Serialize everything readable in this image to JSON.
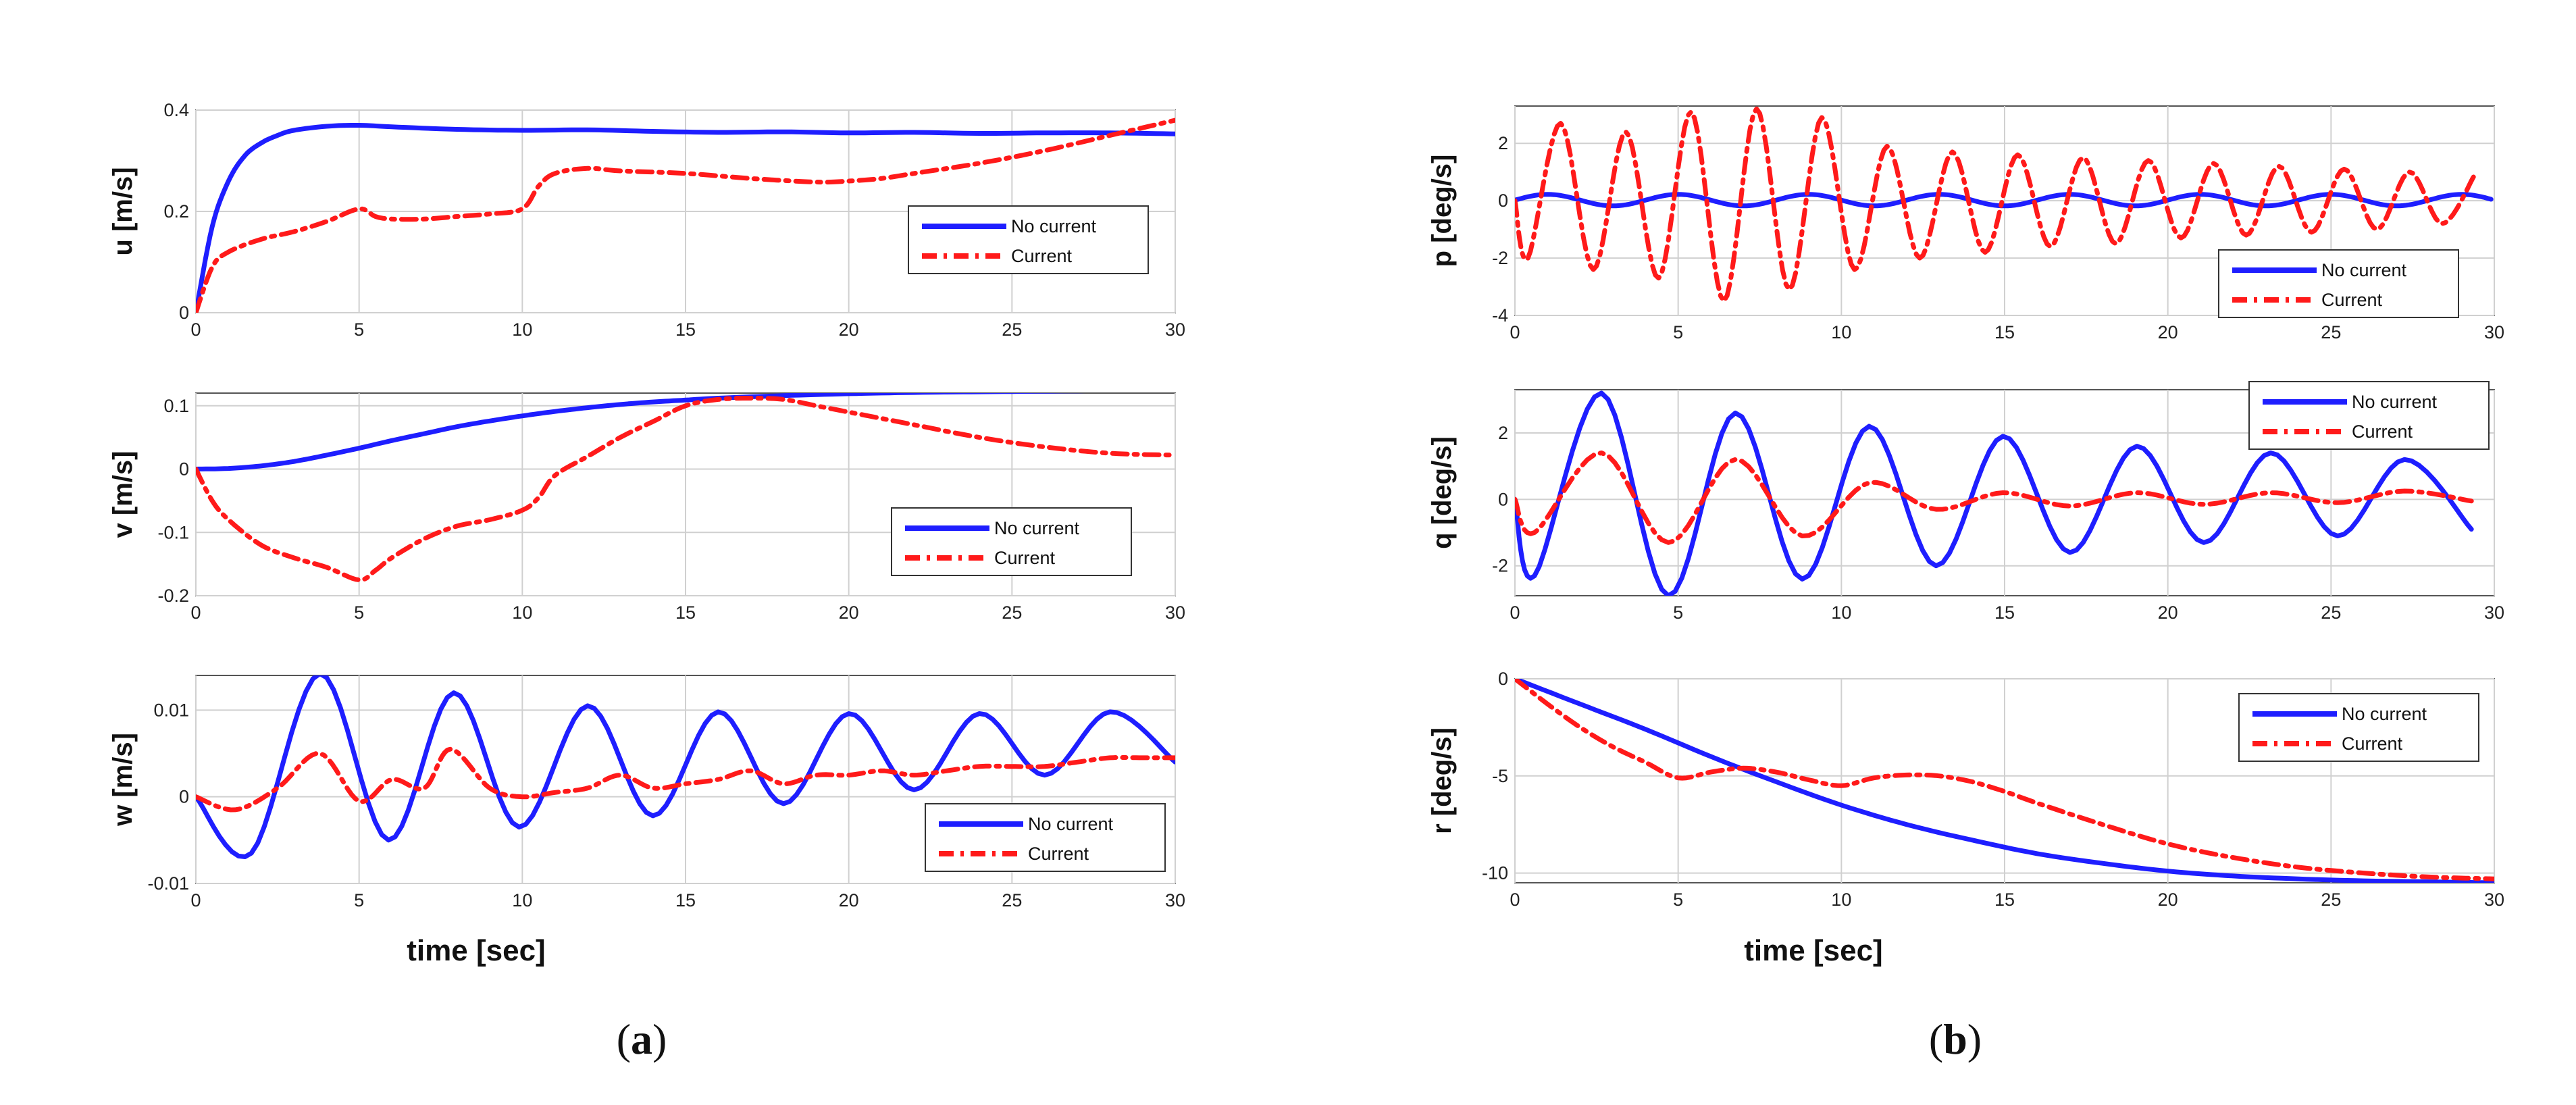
{
  "figure": {
    "xlabel": "time [sec]",
    "captions": {
      "a": {
        "open": "(",
        "letter": "a",
        "close": ")"
      },
      "b": {
        "open": "(",
        "letter": "b",
        "close": ")"
      }
    }
  },
  "colors": {
    "no_current": "#1e1eff",
    "current": "#ff1a1a",
    "grid": "#d0d0d0"
  },
  "chart_data": [
    {
      "id": "u",
      "type": "line",
      "title": "",
      "ylabel": "u [m/s]",
      "xlim": [
        0,
        30
      ],
      "ylim": [
        0,
        0.4
      ],
      "yticks": [
        0,
        0.2,
        0.4
      ],
      "ytick_labels": [
        "0",
        "0.2",
        "0.4"
      ],
      "xticks": [
        0,
        5,
        10,
        15,
        20,
        25,
        30
      ],
      "xtick_labels": [
        "0",
        "5",
        "10",
        "15",
        "20",
        "25",
        "30"
      ],
      "legend": {
        "position": "right-middle",
        "entries": [
          "No current",
          "Current"
        ]
      },
      "series": [
        {
          "name": "No current",
          "style": "solid",
          "x": [
            0,
            0.5,
            1,
            1.5,
            2,
            2.5,
            3,
            4,
            5,
            6,
            8,
            10,
            12,
            14,
            16,
            18,
            20,
            22,
            24,
            26,
            28,
            30
          ],
          "y": [
            0,
            0.17,
            0.26,
            0.31,
            0.335,
            0.35,
            0.36,
            0.368,
            0.37,
            0.367,
            0.362,
            0.36,
            0.361,
            0.358,
            0.356,
            0.357,
            0.355,
            0.356,
            0.354,
            0.355,
            0.355,
            0.353
          ]
        },
        {
          "name": "Current",
          "style": "dashdot",
          "x": [
            0,
            0.5,
            1,
            2,
            3,
            4,
            5,
            5.5,
            6,
            7,
            8,
            9,
            10,
            10.5,
            11,
            12,
            13,
            15,
            17,
            19,
            20,
            21,
            22,
            24,
            26,
            28,
            30
          ],
          "y": [
            0,
            0.09,
            0.12,
            0.145,
            0.16,
            0.18,
            0.205,
            0.19,
            0.185,
            0.185,
            0.19,
            0.195,
            0.205,
            0.25,
            0.275,
            0.285,
            0.28,
            0.275,
            0.265,
            0.258,
            0.26,
            0.265,
            0.275,
            0.295,
            0.32,
            0.35,
            0.38
          ]
        }
      ]
    },
    {
      "id": "v",
      "type": "line",
      "title": "",
      "ylabel": "v [m/s]",
      "xlim": [
        0,
        30
      ],
      "ylim": [
        -0.2,
        0.12
      ],
      "yticks": [
        -0.2,
        -0.1,
        0,
        0.1
      ],
      "ytick_labels": [
        "-0.2",
        "-0.1",
        "0",
        "0.1"
      ],
      "xticks": [
        0,
        5,
        10,
        15,
        20,
        25,
        30
      ],
      "xtick_labels": [
        "0",
        "5",
        "10",
        "15",
        "20",
        "25",
        "30"
      ],
      "legend": {
        "position": "lower-right",
        "entries": [
          "No current",
          "Current"
        ]
      },
      "series": [
        {
          "name": "No current",
          "style": "solid",
          "x": [
            0,
            1,
            2,
            3,
            4,
            5,
            6,
            7,
            8,
            9,
            10,
            11,
            12,
            13,
            14,
            15,
            16,
            18,
            20,
            22,
            24,
            26,
            28,
            30
          ],
          "y": [
            0,
            0.001,
            0.005,
            0.012,
            0.022,
            0.033,
            0.045,
            0.056,
            0.067,
            0.076,
            0.084,
            0.091,
            0.097,
            0.102,
            0.106,
            0.109,
            0.112,
            0.116,
            0.119,
            0.121,
            0.122,
            0.123,
            0.124,
            0.124
          ]
        },
        {
          "name": "Current",
          "style": "dashdot",
          "x": [
            0,
            0.5,
            1,
            2,
            3,
            4,
            5,
            5.5,
            6,
            7,
            8,
            9,
            10,
            10.5,
            11,
            12,
            13,
            14,
            15,
            16,
            17,
            18,
            19,
            20,
            21,
            22,
            24,
            26,
            28,
            30
          ],
          "y": [
            0,
            -0.05,
            -0.08,
            -0.12,
            -0.14,
            -0.155,
            -0.175,
            -0.16,
            -0.14,
            -0.11,
            -0.09,
            -0.08,
            -0.065,
            -0.045,
            -0.01,
            0.02,
            0.05,
            0.075,
            0.1,
            0.11,
            0.112,
            0.11,
            0.1,
            0.09,
            0.08,
            0.07,
            0.05,
            0.035,
            0.025,
            0.022
          ]
        }
      ]
    },
    {
      "id": "w",
      "type": "line",
      "title": "",
      "ylabel": "w [m/s]",
      "xlim": [
        0,
        30
      ],
      "ylim": [
        -0.01,
        0.014
      ],
      "yticks": [
        -0.01,
        0,
        0.01
      ],
      "ytick_labels": [
        "-0.01",
        "0",
        "0.01"
      ],
      "xticks": [
        0,
        5,
        10,
        15,
        20,
        25,
        30
      ],
      "xtick_labels": [
        "0",
        "5",
        "10",
        "15",
        "20",
        "25",
        "30"
      ],
      "legend": {
        "position": "lower-right",
        "entries": [
          "No current",
          "Current"
        ]
      },
      "series": [
        {
          "name": "No current",
          "style": "solid",
          "model": "damped_sine",
          "params": {
            "amp": 0.01,
            "period": 4.1,
            "offset": 0.0045
          },
          "points_x": [
            0,
            1.7,
            3.8,
            5.9,
            7.9,
            9.9,
            12,
            14,
            16,
            18,
            20,
            22,
            24,
            26,
            28,
            30
          ],
          "points_y": [
            0,
            -0.0065,
            0.0142,
            -0.005,
            0.012,
            -0.0035,
            0.0105,
            -0.0022,
            0.0098,
            -0.0008,
            0.0096,
            0.0008,
            0.0096,
            0.0025,
            0.0098,
            0.004
          ]
        },
        {
          "name": "Current",
          "style": "dashdot",
          "points_x": [
            0,
            1.2,
            2.5,
            3.8,
            5.0,
            6.0,
            7.0,
            7.8,
            9.0,
            10,
            11,
            12,
            13,
            14,
            15,
            16,
            17,
            18,
            19,
            20,
            21,
            22,
            23,
            24,
            25,
            26,
            27,
            28,
            29,
            30
          ],
          "points_y": [
            0,
            -0.0015,
            0.001,
            0.005,
            -0.0005,
            0.002,
            0.001,
            0.0055,
            0.001,
            0.0,
            0.0005,
            0.001,
            0.0025,
            0.001,
            0.0015,
            0.002,
            0.003,
            0.0015,
            0.0025,
            0.0025,
            0.003,
            0.0025,
            0.003,
            0.0035,
            0.0035,
            0.0035,
            0.004,
            0.0045,
            0.0045,
            0.0045
          ]
        }
      ]
    },
    {
      "id": "p",
      "type": "line",
      "title": "",
      "ylabel": "p [deg/s]",
      "xlim": [
        0,
        30
      ],
      "ylim": [
        -4,
        3.3
      ],
      "yticks": [
        -4,
        -2,
        0,
        2
      ],
      "ytick_labels": [
        "-4",
        "-2",
        "0",
        "2"
      ],
      "xticks": [
        0,
        5,
        10,
        15,
        20,
        25,
        30
      ],
      "xtick_labels": [
        "0",
        "5",
        "10",
        "15",
        "20",
        "25",
        "30"
      ],
      "legend": {
        "position": "lower-right",
        "entries": [
          "No current",
          "Current"
        ]
      },
      "series": [
        {
          "name": "No current",
          "style": "solid",
          "amplitude": 0.2,
          "period": 4.0
        },
        {
          "name": "Current",
          "style": "dashdot",
          "period": 2.0,
          "peaks": [
            2.7,
            2.4,
            3.1,
            3.2,
            2.9,
            1.9,
            1.7,
            1.6,
            1.5,
            1.4,
            1.3,
            1.2,
            1.1,
            1.0,
            0.9
          ],
          "troughs": [
            -2.0,
            -2.4,
            -2.7,
            -3.5,
            -3.1,
            -2.4,
            -2.0,
            -1.8,
            -1.6,
            -1.5,
            -1.3,
            -1.2,
            -1.1,
            -1.0,
            -0.8
          ]
        }
      ]
    },
    {
      "id": "q",
      "type": "line",
      "title": "",
      "ylabel": "q [deg/s]",
      "xlim": [
        0,
        30
      ],
      "ylim": [
        -2.9,
        3.3
      ],
      "yticks": [
        -2,
        0,
        2
      ],
      "ytick_labels": [
        "-2",
        "0",
        "2"
      ],
      "xticks": [
        0,
        5,
        10,
        15,
        20,
        25,
        30
      ],
      "xtick_labels": [
        "0",
        "5",
        "10",
        "15",
        "20",
        "25",
        "30"
      ],
      "legend": {
        "position": "top-right",
        "entries": [
          "No current",
          "Current"
        ]
      },
      "series": [
        {
          "name": "No current",
          "style": "solid",
          "period": 4.1,
          "peaks": [
            3.2,
            2.6,
            2.2,
            1.9,
            1.6,
            1.4,
            1.2
          ],
          "troughs": [
            -2.3,
            -2.9,
            -2.4,
            -2.0,
            -1.6,
            -1.3,
            -1.1,
            -0.9
          ]
        },
        {
          "name": "Current",
          "style": "dashdot",
          "period": 4.1,
          "peaks": [
            1.4,
            1.2,
            0.5,
            0.2,
            0.2,
            0.2,
            0.25
          ],
          "troughs": [
            -1.0,
            -1.3,
            -1.1,
            -0.3,
            -0.2,
            -0.15,
            -0.1,
            -0.05
          ]
        }
      ]
    },
    {
      "id": "r",
      "type": "line",
      "title": "",
      "ylabel": "r [deg/s]",
      "xlim": [
        0,
        30
      ],
      "ylim": [
        -10.5,
        0
      ],
      "yticks": [
        -10,
        -5,
        0
      ],
      "ytick_labels": [
        "-10",
        "-5",
        "0"
      ],
      "xticks": [
        0,
        5,
        10,
        15,
        20,
        25,
        30
      ],
      "xtick_labels": [
        "0",
        "5",
        "10",
        "15",
        "20",
        "25",
        "30"
      ],
      "legend": {
        "position": "top-right",
        "entries": [
          "No current",
          "Current"
        ]
      },
      "series": [
        {
          "name": "No current",
          "style": "solid",
          "x": [
            0,
            2,
            4,
            6,
            8,
            10,
            12,
            14,
            16,
            18,
            20,
            22,
            24,
            26,
            28,
            30
          ],
          "y": [
            0,
            -1.3,
            -2.6,
            -4.0,
            -5.3,
            -6.5,
            -7.5,
            -8.3,
            -9.0,
            -9.5,
            -9.9,
            -10.15,
            -10.3,
            -10.4,
            -10.45,
            -10.5
          ]
        },
        {
          "name": "Current",
          "style": "dashdot",
          "x": [
            0,
            1,
            2,
            3,
            4,
            5,
            6,
            7,
            8,
            9,
            10,
            11,
            12,
            13,
            14,
            15,
            16,
            18,
            20,
            22,
            24,
            26,
            28,
            30
          ],
          "y": [
            0,
            -1.3,
            -2.5,
            -3.5,
            -4.3,
            -5.1,
            -4.8,
            -4.6,
            -4.8,
            -5.2,
            -5.5,
            -5.1,
            -4.95,
            -5.0,
            -5.3,
            -5.8,
            -6.4,
            -7.5,
            -8.5,
            -9.2,
            -9.7,
            -10.0,
            -10.2,
            -10.3
          ]
        }
      ]
    }
  ]
}
